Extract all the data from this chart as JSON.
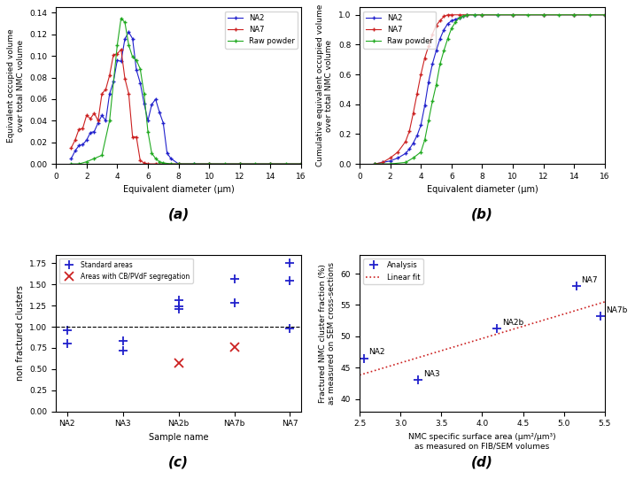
{
  "panel_a": {
    "label": "(a)",
    "xlabel": "Equivalent diameter (μm)",
    "ylabel": "Equivalent occupied volume\nover total NMC volume",
    "xlim": [
      0,
      16
    ],
    "ylim": [
      0,
      0.145
    ],
    "yticks": [
      0.0,
      0.02,
      0.04,
      0.06,
      0.08,
      0.1,
      0.12,
      0.14
    ],
    "na2_x": [
      1.0,
      1.25,
      1.5,
      1.75,
      2.0,
      2.25,
      2.5,
      2.75,
      3.0,
      3.25,
      3.5,
      3.75,
      4.0,
      4.25,
      4.5,
      4.75,
      5.0,
      5.25,
      5.5,
      5.75,
      6.0,
      6.25,
      6.5,
      6.75,
      7.0,
      7.25,
      7.5,
      8.0,
      9.0,
      10.0,
      12.0,
      14.0,
      16.0
    ],
    "na2_y": [
      0.005,
      0.012,
      0.017,
      0.018,
      0.022,
      0.029,
      0.03,
      0.038,
      0.045,
      0.04,
      0.065,
      0.076,
      0.096,
      0.095,
      0.116,
      0.122,
      0.116,
      0.087,
      0.075,
      0.056,
      0.04,
      0.055,
      0.06,
      0.048,
      0.038,
      0.01,
      0.005,
      0.0,
      0.0,
      0.0,
      0.0,
      0.0,
      0.0
    ],
    "na7_x": [
      1.0,
      1.25,
      1.5,
      1.75,
      2.0,
      2.25,
      2.5,
      2.75,
      3.0,
      3.25,
      3.5,
      3.75,
      4.0,
      4.25,
      4.5,
      4.75,
      5.0,
      5.25,
      5.5,
      5.75,
      6.0,
      6.5,
      7.0,
      8.0,
      10.0,
      12.0,
      14.0,
      16.0
    ],
    "na7_y": [
      0.015,
      0.022,
      0.032,
      0.033,
      0.045,
      0.042,
      0.047,
      0.04,
      0.065,
      0.069,
      0.082,
      0.101,
      0.102,
      0.106,
      0.079,
      0.065,
      0.025,
      0.025,
      0.003,
      0.001,
      0.0,
      0.0,
      0.0,
      0.0,
      0.0,
      0.0,
      0.0,
      0.0
    ],
    "raw_x": [
      1.0,
      1.5,
      2.0,
      2.5,
      3.0,
      3.5,
      4.0,
      4.25,
      4.5,
      4.75,
      5.0,
      5.25,
      5.5,
      5.75,
      6.0,
      6.25,
      6.5,
      6.75,
      7.0,
      7.5,
      8.0,
      9.0,
      10.0,
      11.0,
      12.0,
      13.0,
      14.0,
      15.0,
      16.0
    ],
    "raw_y": [
      0.0,
      0.0,
      0.002,
      0.005,
      0.008,
      0.04,
      0.11,
      0.135,
      0.131,
      0.11,
      0.099,
      0.096,
      0.088,
      0.065,
      0.03,
      0.01,
      0.005,
      0.002,
      0.001,
      0.0,
      0.0,
      0.0,
      0.0,
      0.0,
      0.0,
      0.0,
      0.0,
      0.0,
      0.0
    ],
    "colors": {
      "NA2": "#2121cc",
      "NA7": "#cc2121",
      "Raw powder": "#21aa21"
    }
  },
  "panel_b": {
    "label": "(b)",
    "xlabel": "Equivalent diameter (μm)",
    "ylabel": "Cumulative equivalent occupied volume\nover total NMC volume",
    "xlim": [
      0,
      16
    ],
    "ylim": [
      0,
      1.05
    ],
    "yticks": [
      0.0,
      0.2,
      0.4,
      0.6,
      0.8,
      1.0
    ],
    "na2_x": [
      1.0,
      1.5,
      2.0,
      2.5,
      3.0,
      3.25,
      3.5,
      3.75,
      4.0,
      4.25,
      4.5,
      4.75,
      5.0,
      5.25,
      5.5,
      5.75,
      6.0,
      6.25,
      6.5,
      6.75,
      7.0,
      7.5,
      8.0,
      9.0,
      10.0,
      12.0,
      14.0,
      16.0
    ],
    "na2_y": [
      0.0,
      0.01,
      0.02,
      0.04,
      0.07,
      0.1,
      0.14,
      0.19,
      0.26,
      0.39,
      0.55,
      0.67,
      0.76,
      0.84,
      0.9,
      0.94,
      0.96,
      0.97,
      0.98,
      0.99,
      1.0,
      1.0,
      1.0,
      1.0,
      1.0,
      1.0,
      1.0,
      1.0
    ],
    "na7_x": [
      1.0,
      1.5,
      2.0,
      2.5,
      3.0,
      3.25,
      3.5,
      3.75,
      4.0,
      4.25,
      4.5,
      4.75,
      5.0,
      5.25,
      5.5,
      5.75,
      6.0,
      6.5,
      7.0,
      8.0,
      10.0,
      12.0,
      14.0,
      16.0
    ],
    "na7_y": [
      0.0,
      0.01,
      0.04,
      0.08,
      0.15,
      0.22,
      0.34,
      0.47,
      0.6,
      0.71,
      0.79,
      0.87,
      0.93,
      0.96,
      0.99,
      1.0,
      1.0,
      1.0,
      1.0,
      1.0,
      1.0,
      1.0,
      1.0,
      1.0
    ],
    "raw_x": [
      1.0,
      2.0,
      3.0,
      3.5,
      4.0,
      4.25,
      4.5,
      4.75,
      5.0,
      5.25,
      5.5,
      5.75,
      6.0,
      6.25,
      6.5,
      6.75,
      7.0,
      7.5,
      8.0,
      9.0,
      10.0,
      11.0,
      12.0,
      13.0,
      14.0,
      15.0,
      16.0
    ],
    "raw_y": [
      0.0,
      0.0,
      0.01,
      0.04,
      0.08,
      0.16,
      0.29,
      0.42,
      0.53,
      0.67,
      0.76,
      0.84,
      0.91,
      0.95,
      0.98,
      0.99,
      1.0,
      1.0,
      1.0,
      1.0,
      1.0,
      1.0,
      1.0,
      1.0,
      1.0,
      1.0,
      1.0
    ],
    "colors": {
      "NA2": "#2121cc",
      "NA7": "#cc2121",
      "Raw powder": "#21aa21"
    }
  },
  "panel_c": {
    "label": "(c)",
    "xlabel": "Sample name",
    "ylabel": "non fractured clusters",
    "ylim": [
      0,
      1.85
    ],
    "yticks": [
      0.0,
      0.25,
      0.5,
      0.75,
      1.0,
      1.25,
      1.5,
      1.75
    ],
    "samples": [
      "NA2",
      "NA3",
      "NA2b",
      "NA7b",
      "NA7"
    ],
    "standard_data": {
      "NA2": [
        0.8,
        0.96
      ],
      "NA3": [
        0.72,
        0.83
      ],
      "NA2b": [
        1.21,
        1.24,
        1.31
      ],
      "NA7b": [
        1.28,
        1.57
      ],
      "NA7": [
        0.98,
        1.55,
        1.75
      ]
    },
    "segregation_data": {
      "NA2b": [
        0.57
      ],
      "NA7b": [
        0.76
      ]
    },
    "dashed_line_y": 1.0,
    "colors": {
      "standard": "#2121cc",
      "segregation": "#cc2121"
    }
  },
  "panel_d": {
    "label": "(d)",
    "xlabel": "NMC specific surface area (μm²/μm³)\nas measured on FIB/SEM volumes",
    "ylabel": "Fractured NMC cluster fraction (%)\nas measured on SEM cross-sections",
    "xlim": [
      2.5,
      5.5
    ],
    "ylim": [
      38,
      63
    ],
    "yticks": [
      40,
      45,
      50,
      55,
      60
    ],
    "xticks": [
      2.5,
      3.0,
      3.5,
      4.0,
      4.5,
      5.0,
      5.5
    ],
    "points": {
      "NA2": [
        2.55,
        46.5
      ],
      "NA3": [
        3.22,
        43.0
      ],
      "NA2b": [
        4.18,
        51.2
      ],
      "NA7": [
        5.15,
        58.0
      ],
      "NA7b": [
        5.45,
        53.2
      ]
    },
    "fit_x": [
      2.5,
      5.5
    ],
    "fit_y": [
      43.8,
      55.5
    ],
    "colors": {
      "points": "#2121cc",
      "fit": "#cc2121"
    }
  }
}
